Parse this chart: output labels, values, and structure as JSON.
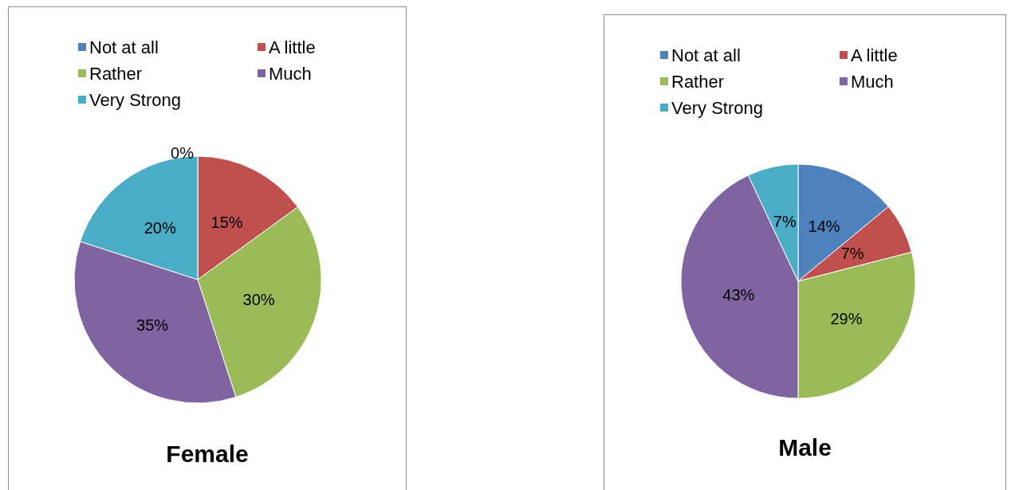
{
  "chart_data": [
    {
      "type": "pie",
      "title": "Female",
      "categories": [
        "Not at all",
        "A little",
        "Rather",
        "Much",
        "Very Strong"
      ],
      "values": [
        0,
        15,
        30,
        35,
        20
      ],
      "value_labels": [
        "0%",
        "15%",
        "30%",
        "35%",
        "20%"
      ],
      "colors": [
        "#4f81bd",
        "#c0504d",
        "#9bbb59",
        "#8064a2",
        "#4bacc6"
      ],
      "legend": "top"
    },
    {
      "type": "pie",
      "title": "Male",
      "categories": [
        "Not at all",
        "A little",
        "Rather",
        "Much",
        "Very Strong"
      ],
      "values": [
        14,
        7,
        29,
        43,
        7
      ],
      "value_labels": [
        "14%",
        "7%",
        "29%",
        "43%",
        "7%"
      ],
      "colors": [
        "#4f81bd",
        "#c0504d",
        "#9bbb59",
        "#8064a2",
        "#4bacc6"
      ],
      "legend": "top"
    }
  ]
}
